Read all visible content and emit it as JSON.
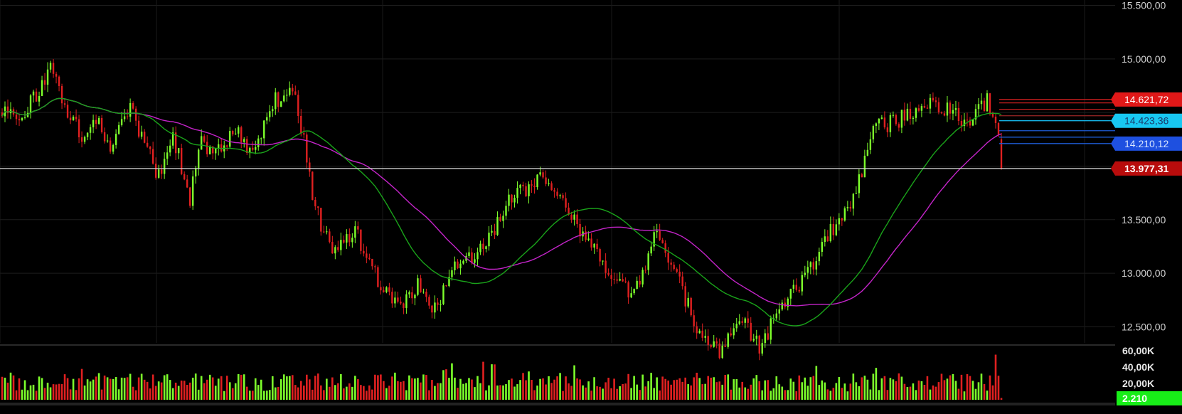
{
  "chart_data": {
    "type": "candlestick",
    "price_axis": {
      "ylim": [
        12350,
        15550
      ],
      "ticks": [
        12500,
        13000,
        13500,
        14000,
        14500,
        15000,
        15500
      ],
      "tick_labels": [
        "12.500,00",
        "13.000,00",
        "13.500,00",
        "",
        "",
        "15.000,00",
        "15.500,00"
      ]
    },
    "volume_axis": {
      "ylim": [
        0,
        65000
      ],
      "ticks": [
        20000,
        40000,
        60000
      ],
      "tick_labels": [
        "20,00K",
        "40,00K",
        "60,00K"
      ]
    },
    "price_path_keypoints": [
      [
        0,
        14500
      ],
      [
        6,
        14450
      ],
      [
        12,
        14650
      ],
      [
        17,
        14900
      ],
      [
        22,
        14550
      ],
      [
        28,
        14300
      ],
      [
        33,
        14450
      ],
      [
        38,
        14200
      ],
      [
        45,
        14550
      ],
      [
        50,
        14200
      ],
      [
        55,
        13900
      ],
      [
        60,
        14300
      ],
      [
        66,
        13700
      ],
      [
        70,
        14200
      ],
      [
        75,
        14100
      ],
      [
        82,
        14350
      ],
      [
        88,
        14100
      ],
      [
        95,
        14600
      ],
      [
        103,
        14700
      ],
      [
        110,
        13600
      ],
      [
        116,
        13200
      ],
      [
        124,
        13400
      ],
      [
        132,
        12950
      ],
      [
        140,
        12700
      ],
      [
        146,
        12900
      ],
      [
        152,
        12650
      ],
      [
        160,
        13100
      ],
      [
        170,
        13250
      ],
      [
        177,
        13650
      ],
      [
        190,
        13900
      ],
      [
        198,
        13600
      ],
      [
        206,
        13300
      ],
      [
        214,
        12950
      ],
      [
        222,
        12800
      ],
      [
        230,
        13400
      ],
      [
        234,
        13150
      ],
      [
        244,
        12500
      ],
      [
        252,
        12250
      ],
      [
        260,
        12600
      ],
      [
        266,
        12300
      ],
      [
        274,
        12700
      ],
      [
        282,
        12950
      ],
      [
        290,
        13350
      ],
      [
        298,
        13600
      ],
      [
        306,
        14350
      ],
      [
        312,
        14400
      ],
      [
        320,
        14500
      ],
      [
        326,
        14600
      ],
      [
        333,
        14500
      ],
      [
        340,
        14400
      ],
      [
        346,
        14600
      ],
      [
        352,
        14250
      ]
    ],
    "n_bars": 352,
    "seed": 13977,
    "ma_fast_period": 40,
    "ma_slow_period": 60,
    "horizontal_levels": [
      {
        "value": 14621.72,
        "color": "#c81e1e"
      },
      {
        "value": 14590,
        "color": "#c81e1e"
      },
      {
        "value": 14530,
        "color": "#c81e1e"
      },
      {
        "value": 14470,
        "color": "#8a2222"
      },
      {
        "value": 14423.36,
        "color": "#16b4e6"
      },
      {
        "value": 14330,
        "color": "#1e5bd6"
      },
      {
        "value": 14270,
        "color": "#1e5bd6"
      },
      {
        "value": 14210.12,
        "color": "#1e5bd6"
      }
    ],
    "last_price": 13977.31,
    "last_volume": 2210,
    "colors": {
      "up": "#7dff2b",
      "down": "#e02020",
      "ma_fast": "#1aa31a",
      "ma_slow": "#c324c8",
      "last_price_line": "#d8d8d8"
    }
  },
  "badges": [
    {
      "text": "14.621,72",
      "value": 14621.72,
      "bg": "#e01818",
      "fg": "#ffffff",
      "bold": false
    },
    {
      "text": "14.423,36",
      "value": 14423.36,
      "bg": "#18c8f2",
      "fg": "#1a3a6a",
      "bold": false
    },
    {
      "text": "14.210,12",
      "value": 14210.12,
      "bg": "#1e50e0",
      "fg": "#d8e6ff",
      "bold": false
    },
    {
      "text": "13.977,31",
      "value": 13977.31,
      "bg": "#b80c0c",
      "fg": "#ffffff",
      "bold": true
    }
  ],
  "volume_badge": {
    "text": "2.210",
    "bg": "#18ee18",
    "fg": "#ffffff"
  }
}
